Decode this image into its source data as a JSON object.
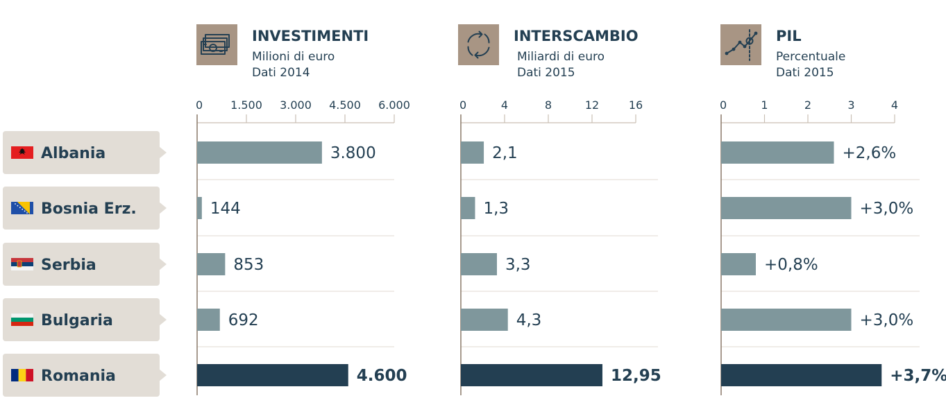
{
  "colors": {
    "bar": "#7f979c",
    "bar_highlight": "#233f52",
    "text": "#233f52",
    "icon_bg": "#a89584",
    "label_bg": "#e2ddd6",
    "axis": "#8a7868",
    "gridline": "#e6e1da"
  },
  "countries": [
    {
      "name": "Albania",
      "flag_icon": "albania-flag-icon",
      "highlight": false
    },
    {
      "name": "Bosnia Erz.",
      "flag_icon": "bosnia-flag-icon",
      "highlight": false
    },
    {
      "name": "Serbia",
      "flag_icon": "serbia-flag-icon",
      "highlight": false
    },
    {
      "name": "Bulgaria",
      "flag_icon": "bulgaria-flag-icon",
      "highlight": false
    },
    {
      "name": "Romania",
      "flag_icon": "romania-flag-icon",
      "highlight": true
    }
  ],
  "chart_data": [
    {
      "type": "bar",
      "orientation": "horizontal",
      "title": "INVESTIMENTI",
      "subtitle_1": "Milioni di euro",
      "subtitle_2": "Dati 2014",
      "icon": "money-icon",
      "categories": [
        "Albania",
        "Bosnia Erz.",
        "Serbia",
        "Bulgaria",
        "Romania"
      ],
      "values": [
        3800,
        144,
        853,
        692,
        4600
      ],
      "value_labels": [
        "3.800",
        "144",
        "853",
        "692",
        "4.600"
      ],
      "ticks": [
        0,
        1500,
        3000,
        4500,
        6000
      ],
      "tick_labels": [
        "0",
        "1.500",
        "3.000",
        "4.500",
        "6.000"
      ],
      "xlim": [
        0,
        6000
      ]
    },
    {
      "type": "bar",
      "orientation": "horizontal",
      "title": "INTERSCAMBIO",
      "subtitle_1": "Miliardi di euro",
      "subtitle_2": "Dati 2015",
      "icon": "exchange-cycle-icon",
      "categories": [
        "Albania",
        "Bosnia Erz.",
        "Serbia",
        "Bulgaria",
        "Romania"
      ],
      "values": [
        2.1,
        1.3,
        3.3,
        4.3,
        12.95
      ],
      "value_labels": [
        "2,1",
        "1,3",
        "3,3",
        "4,3",
        "12,95"
      ],
      "ticks": [
        0,
        4,
        8,
        12,
        16
      ],
      "tick_labels": [
        "0",
        "4",
        "8",
        "12",
        "16"
      ],
      "xlim": [
        0,
        16
      ]
    },
    {
      "type": "bar",
      "orientation": "horizontal",
      "title": "PIL",
      "subtitle_1": "Percentuale",
      "subtitle_2": "Dati 2015",
      "icon": "line-chart-icon",
      "categories": [
        "Albania",
        "Bosnia Erz.",
        "Serbia",
        "Bulgaria",
        "Romania"
      ],
      "values": [
        2.6,
        3.0,
        0.8,
        3.0,
        3.7
      ],
      "value_labels": [
        "+2,6%",
        "+3,0%",
        "+0,8%",
        "+3,0%",
        "+3,7%"
      ],
      "ticks": [
        0,
        1,
        2,
        3,
        4
      ],
      "tick_labels": [
        "0",
        "1",
        "2",
        "3",
        "4"
      ],
      "xlim": [
        0,
        4
      ]
    }
  ]
}
